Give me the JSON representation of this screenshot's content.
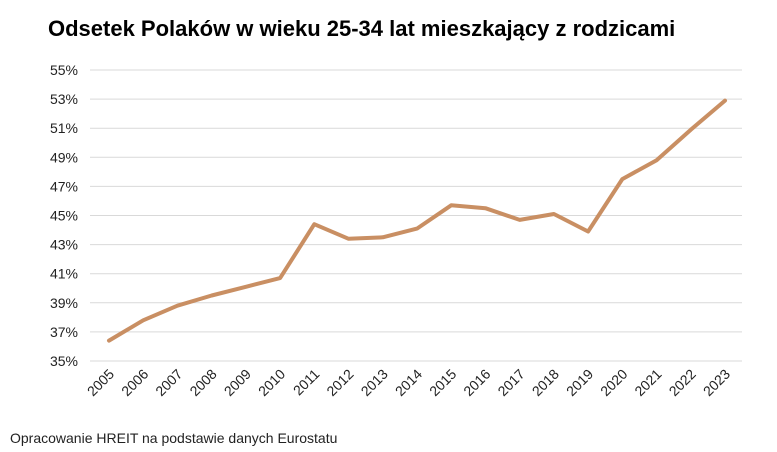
{
  "title": "Odsetek Polaków w wieku 25-34 lat mieszkający z rodzicami",
  "source": "Opracowanie HREIT na podstawie danych Eurostatu",
  "chart_data": {
    "type": "line",
    "x": [
      "2005",
      "2006",
      "2007",
      "2008",
      "2009",
      "2010",
      "2011",
      "2012",
      "2013",
      "2014",
      "2015",
      "2016",
      "2017",
      "2018",
      "2019",
      "2020",
      "2021",
      "2022",
      "2023"
    ],
    "series": [
      {
        "values": [
          36.4,
          37.8,
          38.8,
          39.5,
          40.1,
          40.7,
          44.4,
          43.4,
          43.5,
          44.1,
          45.7,
          45.5,
          44.7,
          45.1,
          43.9,
          47.5,
          48.8,
          50.9,
          52.9
        ],
        "color": "#C98F63"
      }
    ],
    "yticks": [
      "35%",
      "37%",
      "39%",
      "41%",
      "43%",
      "45%",
      "47%",
      "49%",
      "51%",
      "53%",
      "55%"
    ],
    "ylim": [
      35,
      55
    ],
    "grid": true,
    "legend": "none"
  }
}
